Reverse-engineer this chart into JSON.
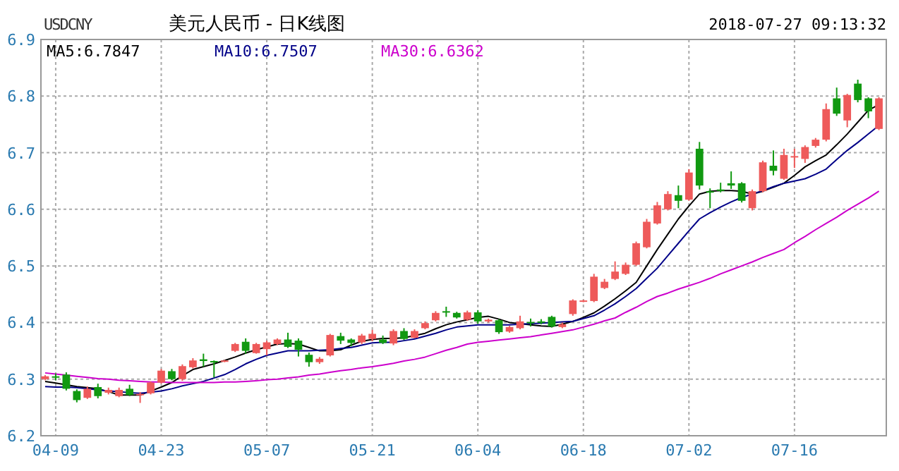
{
  "chart_data": {
    "type": "candlestick",
    "title": "美元人民币 - 日K线图",
    "annotations": [
      "USDCNY",
      "2018-07-27 09:13:32"
    ],
    "categories": [
      null,
      "04-09",
      null,
      null,
      null,
      null,
      null,
      null,
      null,
      null,
      null,
      "04-23",
      null,
      null,
      null,
      null,
      null,
      null,
      null,
      null,
      null,
      "05-07",
      null,
      null,
      null,
      null,
      null,
      null,
      null,
      null,
      null,
      "05-21",
      null,
      null,
      null,
      null,
      null,
      null,
      null,
      null,
      null,
      "06-04",
      null,
      null,
      null,
      null,
      null,
      null,
      null,
      null,
      null,
      "06-18",
      null,
      null,
      null,
      null,
      null,
      null,
      null,
      null,
      null,
      "07-02",
      null,
      null,
      null,
      null,
      null,
      null,
      null,
      null,
      null,
      "07-16",
      null,
      null,
      null,
      null,
      null,
      null,
      null,
      null
    ],
    "ohlc": [
      [
        6.3,
        6.307,
        6.298,
        6.305
      ],
      [
        6.305,
        6.31,
        6.298,
        6.304
      ],
      [
        6.308,
        6.312,
        6.28,
        6.283
      ],
      [
        6.279,
        6.282,
        6.259,
        6.263
      ],
      [
        6.267,
        6.287,
        6.265,
        6.283
      ],
      [
        6.286,
        6.292,
        6.266,
        6.27
      ],
      [
        6.276,
        6.285,
        6.273,
        6.281
      ],
      [
        6.27,
        6.285,
        6.268,
        6.281
      ],
      [
        6.283,
        6.29,
        6.27,
        6.272
      ],
      [
        6.272,
        6.277,
        6.258,
        6.274
      ],
      [
        6.275,
        6.296,
        6.273,
        6.294
      ],
      [
        6.294,
        6.318,
        6.292,
        6.315
      ],
      [
        6.314,
        6.318,
        6.298,
        6.3
      ],
      [
        6.3,
        6.326,
        6.297,
        6.323
      ],
      [
        6.321,
        6.337,
        6.319,
        6.333
      ],
      [
        6.335,
        6.345,
        6.322,
        6.332
      ],
      [
        6.332,
        6.333,
        6.303,
        6.331
      ],
      [
        6.331,
        6.334,
        6.33,
        6.333
      ],
      [
        6.35,
        6.364,
        6.348,
        6.362
      ],
      [
        6.366,
        6.372,
        6.345,
        6.35
      ],
      [
        6.346,
        6.364,
        6.345,
        6.362
      ],
      [
        6.353,
        6.368,
        6.342,
        6.365
      ],
      [
        6.362,
        6.372,
        6.36,
        6.37
      ],
      [
        6.37,
        6.382,
        6.355,
        6.357
      ],
      [
        6.368,
        6.372,
        6.34,
        6.352
      ],
      [
        6.343,
        6.347,
        6.322,
        6.33
      ],
      [
        6.33,
        6.339,
        6.327,
        6.336
      ],
      [
        6.342,
        6.38,
        6.34,
        6.378
      ],
      [
        6.376,
        6.382,
        6.362,
        6.368
      ],
      [
        6.37,
        6.372,
        6.358,
        6.364
      ],
      [
        6.365,
        6.38,
        6.362,
        6.377
      ],
      [
        6.371,
        6.387,
        6.367,
        6.38
      ],
      [
        6.37,
        6.377,
        6.362,
        6.364
      ],
      [
        6.363,
        6.388,
        6.36,
        6.385
      ],
      [
        6.385,
        6.39,
        6.369,
        6.371
      ],
      [
        6.373,
        6.388,
        6.372,
        6.385
      ],
      [
        6.39,
        6.402,
        6.388,
        6.399
      ],
      [
        6.404,
        6.42,
        6.402,
        6.417
      ],
      [
        6.42,
        6.428,
        6.41,
        6.418
      ],
      [
        6.417,
        6.419,
        6.407,
        6.409
      ],
      [
        6.405,
        6.421,
        6.403,
        6.418
      ],
      [
        6.418,
        6.422,
        6.398,
        6.402
      ],
      [
        6.402,
        6.407,
        6.4,
        6.405
      ],
      [
        6.404,
        6.406,
        6.38,
        6.383
      ],
      [
        6.384,
        6.394,
        6.382,
        6.392
      ],
      [
        6.39,
        6.412,
        6.388,
        6.402
      ],
      [
        6.401,
        6.407,
        6.393,
        6.4
      ],
      [
        6.402,
        6.406,
        6.397,
        6.401
      ],
      [
        6.41,
        6.412,
        6.391,
        6.393
      ],
      [
        6.392,
        6.4,
        6.39,
        6.397
      ],
      [
        6.415,
        6.441,
        6.412,
        6.439
      ],
      [
        6.437,
        6.44,
        6.436,
        6.439
      ],
      [
        6.438,
        6.486,
        6.436,
        6.481
      ],
      [
        6.461,
        6.477,
        6.459,
        6.472
      ],
      [
        6.477,
        6.508,
        6.475,
        6.49
      ],
      [
        6.486,
        6.506,
        6.484,
        6.502
      ],
      [
        6.502,
        6.543,
        6.5,
        6.54
      ],
      [
        6.533,
        6.583,
        6.531,
        6.578
      ],
      [
        6.575,
        6.613,
        6.573,
        6.607
      ],
      [
        6.6,
        6.632,
        6.598,
        6.627
      ],
      [
        6.625,
        6.642,
        6.602,
        6.615
      ],
      [
        6.617,
        6.671,
        6.615,
        6.665
      ],
      [
        6.707,
        6.719,
        6.635,
        6.642
      ],
      [
        6.632,
        6.637,
        6.602,
        6.63
      ],
      [
        6.635,
        6.647,
        6.63,
        6.634
      ],
      [
        6.646,
        6.667,
        6.636,
        6.642
      ],
      [
        6.646,
        6.648,
        6.612,
        6.615
      ],
      [
        6.602,
        6.635,
        6.598,
        6.632
      ],
      [
        6.632,
        6.686,
        6.63,
        6.683
      ],
      [
        6.677,
        6.704,
        6.66,
        6.668
      ],
      [
        6.654,
        6.707,
        6.652,
        6.696
      ],
      [
        6.693,
        6.707,
        6.673,
        6.694
      ],
      [
        6.689,
        6.713,
        6.682,
        6.71
      ],
      [
        6.712,
        6.726,
        6.709,
        6.723
      ],
      [
        6.723,
        6.787,
        6.72,
        6.777
      ],
      [
        6.796,
        6.815,
        6.765,
        6.769
      ],
      [
        6.757,
        6.804,
        6.745,
        6.802
      ],
      [
        6.822,
        6.829,
        6.789,
        6.793
      ],
      [
        6.796,
        6.798,
        6.761,
        6.773
      ],
      [
        6.742,
        6.798,
        6.74,
        6.796
      ]
    ],
    "colors": [
      "#ee5a5a",
      "#119911",
      "#119911",
      "#119911",
      "#ee5a5a",
      "#119911",
      "#ee5a5a",
      "#ee5a5a",
      "#119911",
      "#ee5a5a",
      "#ee5a5a",
      "#ee5a5a",
      "#119911",
      "#ee5a5a",
      "#ee5a5a",
      "#119911",
      "#119911",
      "#ee5a5a",
      "#ee5a5a",
      "#119911",
      "#ee5a5a",
      "#ee5a5a",
      "#ee5a5a",
      "#119911",
      "#119911",
      "#119911",
      "#ee5a5a",
      "#ee5a5a",
      "#119911",
      "#119911",
      "#ee5a5a",
      "#ee5a5a",
      "#119911",
      "#ee5a5a",
      "#119911",
      "#ee5a5a",
      "#ee5a5a",
      "#ee5a5a",
      "#119911",
      "#119911",
      "#ee5a5a",
      "#119911",
      "#ee5a5a",
      "#119911",
      "#ee5a5a",
      "#ee5a5a",
      "#119911",
      "#119911",
      "#119911",
      "#ee5a5a",
      "#ee5a5a",
      "#ee5a5a",
      "#ee5a5a",
      "#ee5a5a",
      "#ee5a5a",
      "#ee5a5a",
      "#ee5a5a",
      "#ee5a5a",
      "#ee5a5a",
      "#ee5a5a",
      "#119911",
      "#ee5a5a",
      "#119911",
      "#119911",
      "#119911",
      "#119911",
      "#119911",
      "#ee5a5a",
      "#ee5a5a",
      "#119911",
      "#ee5a5a",
      "#ee5a5a",
      "#ee5a5a",
      "#ee5a5a",
      "#ee5a5a",
      "#119911",
      "#ee5a5a",
      "#119911",
      "#119911",
      "#ee5a5a"
    ],
    "series": [
      {
        "type": "line",
        "name": "MA5:6.7847",
        "color": "#000000",
        "values": [
          6.296,
          6.293,
          6.29,
          6.287,
          6.285,
          6.283,
          6.278,
          6.272,
          6.272,
          6.272,
          6.279,
          6.286,
          6.294,
          6.306,
          6.317,
          6.322,
          6.327,
          6.333,
          6.339,
          6.346,
          6.352,
          6.357,
          6.362,
          6.363,
          6.362,
          6.356,
          6.35,
          6.35,
          6.352,
          6.36,
          6.367,
          6.37,
          6.372,
          6.372,
          6.373,
          6.377,
          6.381,
          6.389,
          6.396,
          6.401,
          6.405,
          6.409,
          6.411,
          6.406,
          6.4,
          6.398,
          6.396,
          6.394,
          6.393,
          6.397,
          6.402,
          6.409,
          6.417,
          6.429,
          6.442,
          6.456,
          6.471,
          6.5,
          6.529,
          6.556,
          6.583,
          6.606,
          6.627,
          6.632,
          6.633,
          6.633,
          6.632,
          6.627,
          6.632,
          6.639,
          6.646,
          6.66,
          6.675,
          6.686,
          6.696,
          6.714,
          6.733,
          6.754,
          6.775,
          6.785
        ]
      },
      {
        "type": "line",
        "name": "MA10:6.7507",
        "color": "#000088",
        "values": [
          6.287,
          6.286,
          6.286,
          6.285,
          6.283,
          6.281,
          6.279,
          6.278,
          6.276,
          6.275,
          6.277,
          6.279,
          6.283,
          6.288,
          6.292,
          6.296,
          6.302,
          6.308,
          6.317,
          6.327,
          6.335,
          6.342,
          6.346,
          6.35,
          6.35,
          6.35,
          6.351,
          6.352,
          6.354,
          6.356,
          6.36,
          6.364,
          6.365,
          6.365,
          6.368,
          6.371,
          6.376,
          6.381,
          6.387,
          6.392,
          6.394,
          6.396,
          6.396,
          6.396,
          6.396,
          6.397,
          6.398,
          6.399,
          6.4,
          6.401,
          6.402,
          6.407,
          6.412,
          6.422,
          6.433,
          6.446,
          6.46,
          6.478,
          6.496,
          6.518,
          6.54,
          6.562,
          6.583,
          6.594,
          6.604,
          6.613,
          6.621,
          6.627,
          6.633,
          6.64,
          6.646,
          6.65,
          6.654,
          6.662,
          6.671,
          6.688,
          6.704,
          6.718,
          6.733,
          6.748
        ]
      },
      {
        "type": "line",
        "name": "MA30:6.6362",
        "color": "#cc00cc",
        "values": [
          6.311,
          6.309,
          6.307,
          6.305,
          6.303,
          6.301,
          6.3,
          6.298,
          6.297,
          6.296,
          6.295,
          6.295,
          6.294,
          6.294,
          6.294,
          6.294,
          6.294,
          6.295,
          6.295,
          6.296,
          6.297,
          6.299,
          6.3,
          6.302,
          6.304,
          6.307,
          6.309,
          6.312,
          6.315,
          6.317,
          6.32,
          6.322,
          6.325,
          6.328,
          6.332,
          6.335,
          6.339,
          6.345,
          6.351,
          6.356,
          6.362,
          6.365,
          6.367,
          6.369,
          6.371,
          6.373,
          6.375,
          6.378,
          6.381,
          6.384,
          6.387,
          6.392,
          6.397,
          6.403,
          6.408,
          6.418,
          6.427,
          6.437,
          6.446,
          6.452,
          6.459,
          6.465,
          6.471,
          6.478,
          6.486,
          6.493,
          6.5,
          6.507,
          6.515,
          6.522,
          6.529,
          6.541,
          6.552,
          6.564,
          6.575,
          6.586,
          6.598,
          6.609,
          6.62,
          6.632
        ]
      }
    ],
    "ylim": [
      6.2,
      6.9
    ],
    "yticks": [
      6.2,
      6.3,
      6.4,
      6.5,
      6.6,
      6.7,
      6.8,
      6.9
    ],
    "grid": true,
    "legend": "top left"
  }
}
